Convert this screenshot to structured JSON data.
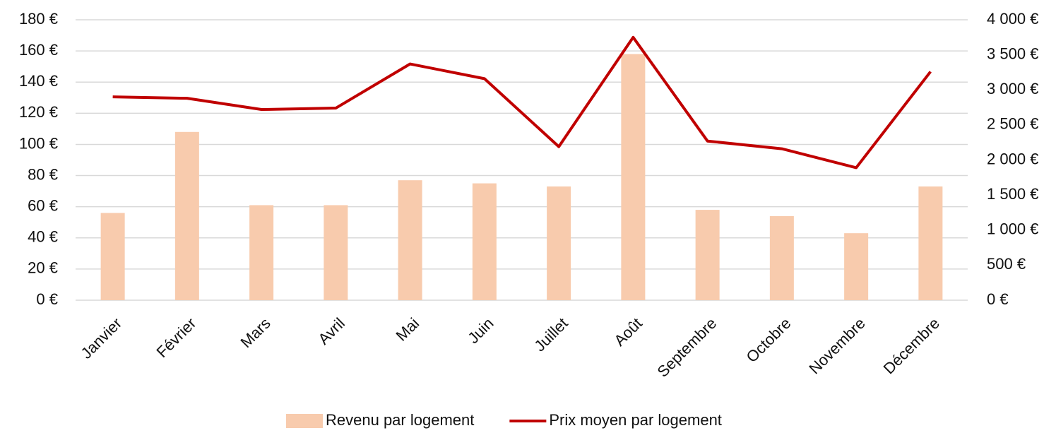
{
  "chart_data": {
    "type": "bar-line",
    "categories": [
      "Janvier",
      "Février",
      "Mars",
      "Avril",
      "Mai",
      "Juin",
      "Juillet",
      "Août",
      "Septembre",
      "Octobre",
      "Novembre",
      "Décembre"
    ],
    "series": [
      {
        "name": "Revenu par logement",
        "type": "bar",
        "color": "#f8cbad",
        "values": [
          56,
          108,
          61,
          61,
          77,
          75,
          73,
          158,
          58,
          54,
          43,
          73
        ]
      },
      {
        "name": "Prix moyen par logement",
        "type": "line",
        "axis": "y2",
        "color": "#c00000",
        "values": [
          2900,
          2880,
          2720,
          2740,
          3370,
          3160,
          2190,
          3750,
          2270,
          2160,
          1890,
          3260
        ]
      }
    ],
    "ylim": [
      0,
      180
    ],
    "yticks": [
      {
        "value": 0,
        "label": "0 €"
      },
      {
        "value": 20,
        "label": "20 €"
      },
      {
        "value": 40,
        "label": "40 €"
      },
      {
        "value": 60,
        "label": "60 €"
      },
      {
        "value": 80,
        "label": "80 €"
      },
      {
        "value": 100,
        "label": "100 €"
      },
      {
        "value": 120,
        "label": "120 €"
      },
      {
        "value": 140,
        "label": "140 €"
      },
      {
        "value": 160,
        "label": "160 €"
      },
      {
        "value": 180,
        "label": "180 €"
      }
    ],
    "y2lim": [
      0,
      4000
    ],
    "y2ticks": [
      {
        "value": 0,
        "label": "0 €"
      },
      {
        "value": 500,
        "label": "500 €"
      },
      {
        "value": 1000,
        "label": "1 000 €"
      },
      {
        "value": 1500,
        "label": "1 500 €"
      },
      {
        "value": 2000,
        "label": "2 000 €"
      },
      {
        "value": 2500,
        "label": "2 500 €"
      },
      {
        "value": 3000,
        "label": "3 000 €"
      },
      {
        "value": 3500,
        "label": "3 500 €"
      },
      {
        "value": 4000,
        "label": "4 000 €"
      }
    ],
    "grid": true,
    "legend": "bottom"
  }
}
